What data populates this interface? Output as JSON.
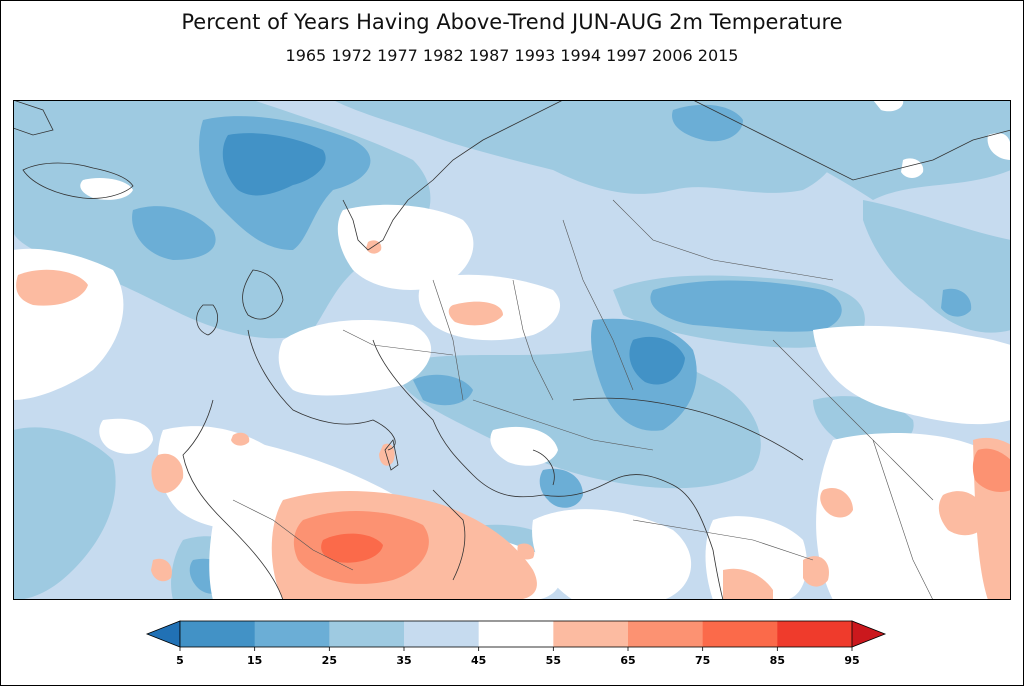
{
  "figure": {
    "title": "Percent of Years Having Above-Trend JUN-AUG 2m Temperature",
    "subtitle": "1965 1972 1977 1982 1987 1993 1994 1997 2006 2015"
  },
  "colorbar": {
    "ticks": [
      "5",
      "15",
      "25",
      "35",
      "45",
      "55",
      "65",
      "75",
      "85",
      "95"
    ],
    "colors": [
      "#4292c6",
      "#6baed6",
      "#9ecae1",
      "#c6dbef",
      "#ffffff",
      "#fcbba1",
      "#fc9272",
      "#fb6a4a",
      "#ef3b2c"
    ],
    "under_color": "#2171b5",
    "over_color": "#cb181d"
  },
  "colors": {
    "coast": "#333333",
    "border": "#555555"
  }
}
